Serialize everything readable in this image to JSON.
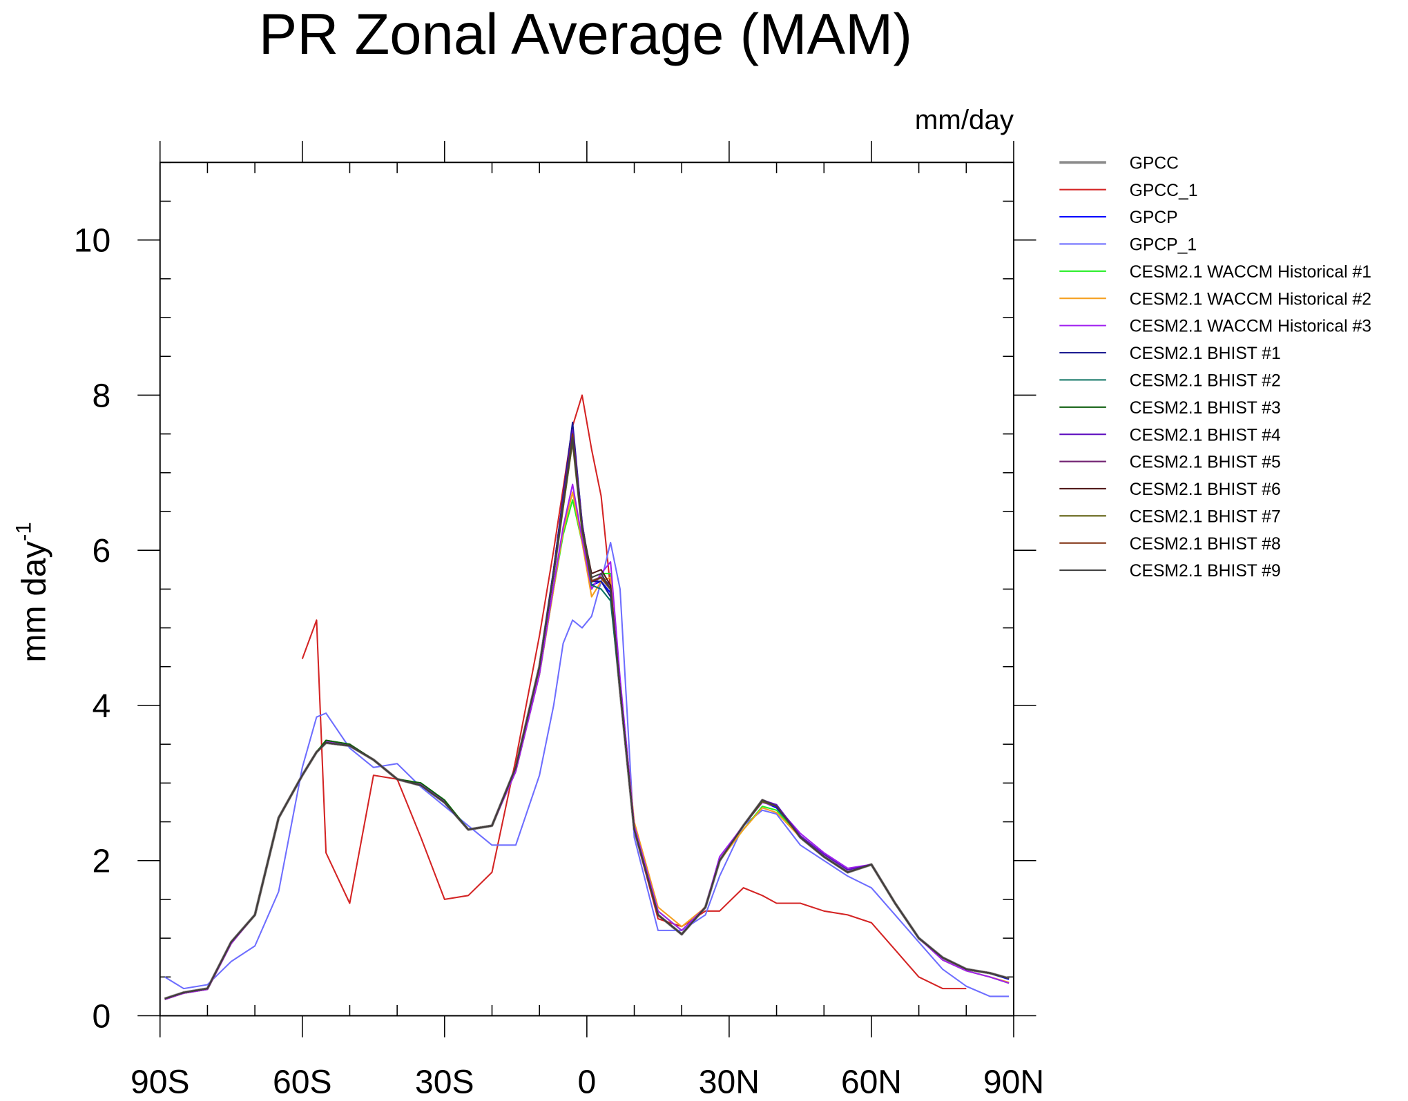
{
  "chart_data": {
    "type": "line",
    "title": "PR Zonal Average (MAM)",
    "units": "mm/day",
    "y_label": "mm day",
    "y_label_exponent": "-1",
    "x": [
      -89,
      -85,
      -80,
      -75,
      -70,
      -65,
      -60,
      -57,
      -55,
      -50,
      -45,
      -40,
      -35,
      -30,
      -25,
      -20,
      -15,
      -10,
      -7,
      -5,
      -3,
      -1,
      1,
      3,
      5,
      7,
      10,
      15,
      20,
      25,
      28,
      33,
      37,
      40,
      45,
      50,
      55,
      60,
      65,
      70,
      75,
      80,
      85,
      89
    ],
    "xlim": [
      -90,
      90
    ],
    "xticks": [
      {
        "value": -90,
        "label": "90S"
      },
      {
        "value": -60,
        "label": "60S"
      },
      {
        "value": -30,
        "label": "30S"
      },
      0,
      {
        "value": 30,
        "label": "30N"
      },
      {
        "value": 60,
        "label": "60N"
      },
      {
        "value": 90,
        "label": "90N"
      }
    ],
    "xminorticks": [
      -80,
      -70,
      -50,
      -40,
      -20,
      -10,
      10,
      20,
      40,
      50,
      70,
      80
    ],
    "ylim": [
      0,
      11
    ],
    "yticks": [
      0,
      2,
      4,
      6,
      8,
      10
    ],
    "yminorticks": [
      0.5,
      1,
      1.5,
      2.5,
      3,
      3.5,
      4.5,
      5,
      5.5,
      6.5,
      7,
      7.5,
      8.5,
      9,
      9.5,
      10.5,
      11
    ],
    "series": [
      {
        "name": "GPCC",
        "color": "#8a8a8a",
        "values": [
          0.22,
          0.3,
          0.35,
          0.95,
          1.3,
          2.55,
          3.1,
          3.4,
          3.52,
          3.48,
          3.3,
          3.05,
          2.97,
          2.75,
          2.4,
          2.45,
          3.2,
          4.5,
          5.7,
          6.6,
          7.45,
          6.3,
          5.6,
          5.65,
          5.5,
          4.2,
          2.4,
          1.3,
          1.05,
          1.4,
          2.0,
          2.45,
          2.78,
          2.7,
          2.3,
          2.05,
          1.85,
          1.95,
          1.45,
          1.0,
          0.75,
          0.6,
          0.55,
          0.48
        ]
      },
      {
        "name": "GPCC_1",
        "color": "#d42424",
        "values": [
          null,
          null,
          null,
          null,
          null,
          null,
          4.6,
          5.1,
          2.1,
          1.45,
          3.1,
          3.05,
          2.3,
          1.5,
          1.55,
          1.85,
          3.3,
          4.9,
          6.0,
          6.8,
          7.6,
          8.0,
          7.3,
          6.7,
          5.5,
          4.2,
          2.4,
          1.25,
          1.15,
          1.35,
          1.35,
          1.65,
          1.55,
          1.45,
          1.45,
          1.35,
          1.3,
          1.2,
          0.85,
          0.5,
          0.35,
          0.35,
          null,
          null
        ]
      },
      {
        "name": "GPCP",
        "color": "#0000ff",
        "values": [
          0.22,
          0.3,
          0.35,
          0.95,
          1.3,
          2.55,
          3.1,
          3.4,
          3.52,
          3.48,
          3.3,
          3.05,
          2.97,
          2.75,
          2.4,
          2.45,
          3.2,
          4.5,
          5.75,
          6.7,
          7.6,
          6.35,
          5.55,
          5.6,
          5.45,
          4.2,
          2.4,
          1.3,
          1.05,
          1.4,
          2.0,
          2.45,
          2.76,
          2.68,
          2.3,
          2.05,
          1.85,
          1.95,
          1.45,
          1.0,
          0.75,
          0.6,
          0.55,
          0.47
        ]
      },
      {
        "name": "GPCP_1",
        "color": "#6e6eff",
        "values": [
          0.5,
          0.35,
          0.4,
          0.7,
          0.9,
          1.6,
          3.2,
          3.85,
          3.9,
          3.45,
          3.2,
          3.25,
          2.95,
          2.7,
          2.45,
          2.2,
          2.2,
          3.1,
          4.0,
          4.8,
          5.1,
          5.0,
          5.15,
          5.6,
          6.1,
          5.5,
          2.3,
          1.1,
          1.1,
          1.3,
          1.8,
          2.45,
          2.65,
          2.6,
          2.2,
          2.0,
          1.8,
          1.65,
          1.3,
          0.95,
          0.6,
          0.38,
          0.25,
          0.25
        ]
      },
      {
        "name": "CESM2.1 WACCM Historical #1",
        "color": "#22ee22",
        "values": [
          0.21,
          0.29,
          0.34,
          0.93,
          1.3,
          2.55,
          3.1,
          3.4,
          3.55,
          3.5,
          3.3,
          3.05,
          3.0,
          2.78,
          2.4,
          2.45,
          3.15,
          4.4,
          5.5,
          6.2,
          6.65,
          6.1,
          5.5,
          5.7,
          5.7,
          4.3,
          2.45,
          1.35,
          1.1,
          1.4,
          2.0,
          2.4,
          2.7,
          2.65,
          2.3,
          2.05,
          1.85,
          1.95,
          1.45,
          1.0,
          0.72,
          0.58,
          0.5,
          0.42
        ]
      },
      {
        "name": "CESM2.1 WACCM Historical #2",
        "color": "#f5a020",
        "values": [
          0.21,
          0.29,
          0.34,
          0.93,
          1.3,
          2.55,
          3.1,
          3.4,
          3.53,
          3.5,
          3.3,
          3.05,
          2.98,
          2.76,
          2.4,
          2.45,
          3.15,
          4.4,
          5.5,
          6.25,
          6.75,
          6.1,
          5.4,
          5.6,
          5.65,
          4.3,
          2.5,
          1.4,
          1.15,
          1.4,
          2.0,
          2.4,
          2.68,
          2.62,
          2.3,
          2.05,
          1.85,
          1.95,
          1.45,
          1.0,
          0.72,
          0.58,
          0.5,
          0.43
        ]
      },
      {
        "name": "CESM2.1 WACCM Historical #3",
        "color": "#a020f0",
        "values": [
          0.21,
          0.29,
          0.34,
          0.93,
          1.3,
          2.55,
          3.1,
          3.4,
          3.53,
          3.5,
          3.3,
          3.05,
          2.98,
          2.76,
          2.4,
          2.45,
          3.15,
          4.4,
          5.55,
          6.3,
          6.85,
          6.15,
          5.5,
          5.7,
          5.85,
          4.35,
          2.45,
          1.35,
          1.1,
          1.4,
          2.05,
          2.45,
          2.75,
          2.7,
          2.35,
          2.1,
          1.9,
          1.95,
          1.45,
          1.0,
          0.72,
          0.58,
          0.5,
          0.42
        ]
      },
      {
        "name": "CESM2.1 BHIST #1",
        "color": "#1a1a90",
        "values": [
          0.22,
          0.3,
          0.35,
          0.95,
          1.3,
          2.55,
          3.1,
          3.4,
          3.52,
          3.48,
          3.3,
          3.05,
          2.97,
          2.75,
          2.4,
          2.45,
          3.2,
          4.5,
          5.75,
          6.7,
          7.65,
          6.35,
          5.6,
          5.6,
          5.4,
          4.2,
          2.4,
          1.3,
          1.05,
          1.4,
          2.0,
          2.45,
          2.78,
          2.7,
          2.3,
          2.05,
          1.85,
          1.95,
          1.45,
          1.0,
          0.75,
          0.6,
          0.55,
          0.48
        ]
      },
      {
        "name": "CESM2.1 BHIST #2",
        "color": "#0a7060",
        "values": [
          0.22,
          0.3,
          0.35,
          0.95,
          1.3,
          2.55,
          3.1,
          3.4,
          3.52,
          3.48,
          3.3,
          3.05,
          2.97,
          2.75,
          2.4,
          2.45,
          3.2,
          4.5,
          5.7,
          6.6,
          7.5,
          6.3,
          5.55,
          5.5,
          5.35,
          4.2,
          2.4,
          1.3,
          1.05,
          1.4,
          2.0,
          2.45,
          2.78,
          2.7,
          2.3,
          2.05,
          1.85,
          1.95,
          1.45,
          1.0,
          0.75,
          0.6,
          0.55,
          0.48
        ]
      },
      {
        "name": "CESM2.1 BHIST #3",
        "color": "#106010",
        "values": [
          0.22,
          0.3,
          0.35,
          0.95,
          1.3,
          2.55,
          3.1,
          3.4,
          3.55,
          3.5,
          3.3,
          3.05,
          3.0,
          2.78,
          2.4,
          2.45,
          3.2,
          4.5,
          5.7,
          6.6,
          7.45,
          6.3,
          5.6,
          5.65,
          5.5,
          4.2,
          2.4,
          1.3,
          1.05,
          1.4,
          2.0,
          2.45,
          2.78,
          2.7,
          2.3,
          2.05,
          1.85,
          1.95,
          1.45,
          1.0,
          0.75,
          0.6,
          0.55,
          0.48
        ]
      },
      {
        "name": "CESM2.1 BHIST #4",
        "color": "#6010c0",
        "values": [
          0.22,
          0.3,
          0.35,
          0.95,
          1.3,
          2.55,
          3.1,
          3.4,
          3.52,
          3.48,
          3.3,
          3.05,
          2.97,
          2.75,
          2.4,
          2.45,
          3.2,
          4.5,
          5.7,
          6.65,
          7.55,
          6.35,
          5.6,
          5.65,
          5.55,
          4.2,
          2.4,
          1.3,
          1.05,
          1.4,
          2.0,
          2.45,
          2.78,
          2.72,
          2.32,
          2.08,
          1.88,
          1.95,
          1.45,
          1.0,
          0.75,
          0.6,
          0.55,
          0.48
        ]
      },
      {
        "name": "CESM2.1 BHIST #5",
        "color": "#702070",
        "values": [
          0.22,
          0.3,
          0.35,
          0.95,
          1.3,
          2.55,
          3.1,
          3.4,
          3.52,
          3.48,
          3.3,
          3.05,
          2.97,
          2.75,
          2.4,
          2.45,
          3.2,
          4.5,
          5.7,
          6.6,
          7.4,
          6.3,
          5.6,
          5.65,
          5.5,
          4.2,
          2.4,
          1.3,
          1.05,
          1.4,
          2.0,
          2.45,
          2.78,
          2.7,
          2.3,
          2.05,
          1.85,
          1.95,
          1.45,
          1.0,
          0.75,
          0.6,
          0.55,
          0.48
        ]
      },
      {
        "name": "CESM2.1 BHIST #6",
        "color": "#501818",
        "values": [
          0.22,
          0.3,
          0.35,
          0.95,
          1.3,
          2.55,
          3.1,
          3.4,
          3.52,
          3.48,
          3.3,
          3.05,
          2.97,
          2.75,
          2.4,
          2.45,
          3.2,
          4.5,
          5.7,
          6.6,
          7.45,
          6.3,
          5.7,
          5.75,
          5.55,
          4.2,
          2.4,
          1.3,
          1.05,
          1.4,
          2.0,
          2.45,
          2.78,
          2.7,
          2.3,
          2.05,
          1.85,
          1.95,
          1.45,
          1.0,
          0.75,
          0.6,
          0.55,
          0.48
        ]
      },
      {
        "name": "CESM2.1 BHIST #7",
        "color": "#606010",
        "values": [
          0.22,
          0.3,
          0.35,
          0.95,
          1.3,
          2.55,
          3.1,
          3.4,
          3.52,
          3.48,
          3.3,
          3.05,
          2.97,
          2.75,
          2.4,
          2.45,
          3.2,
          4.5,
          5.7,
          6.55,
          7.4,
          6.25,
          5.6,
          5.65,
          5.5,
          4.2,
          2.4,
          1.3,
          1.05,
          1.4,
          2.0,
          2.45,
          2.76,
          2.7,
          2.3,
          2.05,
          1.85,
          1.95,
          1.45,
          1.0,
          0.75,
          0.6,
          0.55,
          0.48
        ]
      },
      {
        "name": "CESM2.1 BHIST #8",
        "color": "#803010",
        "values": [
          0.22,
          0.3,
          0.35,
          0.95,
          1.3,
          2.55,
          3.1,
          3.4,
          3.52,
          3.48,
          3.3,
          3.05,
          2.97,
          2.75,
          2.4,
          2.45,
          3.2,
          4.5,
          5.7,
          6.6,
          7.5,
          6.3,
          5.6,
          5.65,
          5.5,
          4.2,
          2.4,
          1.3,
          1.05,
          1.4,
          2.0,
          2.45,
          2.78,
          2.7,
          2.3,
          2.05,
          1.85,
          1.95,
          1.45,
          1.0,
          0.75,
          0.6,
          0.55,
          0.48
        ]
      },
      {
        "name": "CESM2.1 BHIST #9",
        "color": "#404040",
        "values": [
          0.22,
          0.3,
          0.35,
          0.95,
          1.3,
          2.55,
          3.1,
          3.4,
          3.52,
          3.48,
          3.3,
          3.05,
          2.97,
          2.75,
          2.4,
          2.45,
          3.2,
          4.5,
          5.7,
          6.6,
          7.45,
          6.3,
          5.65,
          5.7,
          5.5,
          4.2,
          2.4,
          1.3,
          1.05,
          1.4,
          2.0,
          2.45,
          2.78,
          2.7,
          2.3,
          2.05,
          1.85,
          1.95,
          1.45,
          1.0,
          0.75,
          0.6,
          0.55,
          0.48
        ]
      }
    ]
  }
}
